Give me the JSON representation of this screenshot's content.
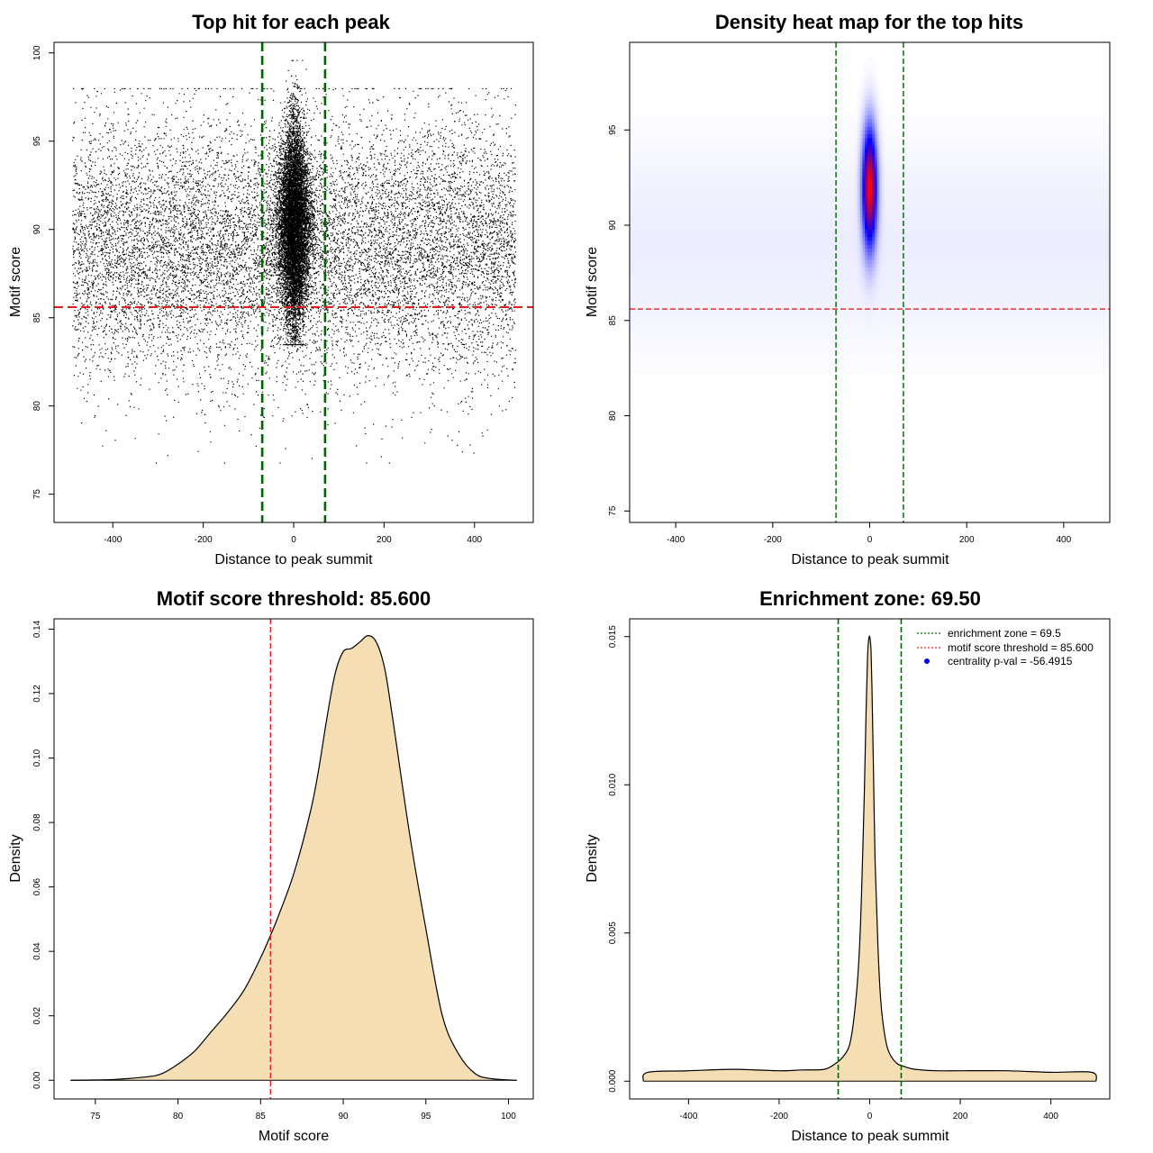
{
  "chart_data": [
    {
      "id": "scatter",
      "type": "scatter",
      "title": "Top hit for each peak",
      "xlabel": "Distance to peak summit",
      "ylabel": "Motif score",
      "xlim": [
        -530,
        530
      ],
      "ylim": [
        73.4,
        100.6
      ],
      "xticks": [
        -400,
        -200,
        0,
        200,
        400
      ],
      "yticks": [
        75,
        80,
        85,
        90,
        95,
        100
      ],
      "point_color": "#000000",
      "vlines": {
        "values": [
          -69.5,
          69.5
        ],
        "color": "#006400"
      },
      "hline": {
        "value": 85.6,
        "color": "#e02020"
      },
      "population": {
        "background": {
          "x_range": [
            -490,
            490
          ],
          "y_mean": 89,
          "y_sd": 3.6,
          "y_range": [
            76.8,
            98
          ],
          "count": 12000
        },
        "central_cluster": {
          "x_mean": 0,
          "x_sd": 18,
          "y_mean": 90.3,
          "y_sd": 2.8,
          "y_range": [
            83.5,
            99.6
          ],
          "count": 9000
        }
      }
    },
    {
      "id": "heatmap",
      "type": "heatmap",
      "title": "Density heat map for the top hits",
      "xlabel": "Distance to peak summit",
      "ylabel": "Motif score",
      "xlim": [
        -495,
        495
      ],
      "ylim": [
        74.4,
        99.6
      ],
      "xticks": [
        -400,
        -200,
        0,
        200,
        400
      ],
      "yticks": [
        75,
        80,
        85,
        90,
        95
      ],
      "colormap": [
        "#ffffff",
        "#0000ff",
        "#ff0000"
      ],
      "peak": {
        "x": 0,
        "y": 92,
        "x_sd": 10,
        "y_sd": 2.1
      },
      "vlines": {
        "values": [
          -69.5,
          69.5
        ],
        "color": "#006400"
      },
      "hline": {
        "value": 85.6,
        "color": "#e02020"
      }
    },
    {
      "id": "score-density",
      "type": "area",
      "title": "Motif score threshold: 85.600",
      "xlabel": "Motif score",
      "ylabel": "Density",
      "xlim": [
        72.5,
        101.5
      ],
      "ylim": [
        -0.0058,
        0.1432
      ],
      "xticks": [
        75,
        80,
        85,
        90,
        95,
        100
      ],
      "yticks": [
        0.0,
        0.02,
        0.04,
        0.06,
        0.08,
        0.1,
        0.12,
        0.14
      ],
      "ytick_labels": [
        "0.00",
        "0.02",
        "0.04",
        "0.06",
        "0.08",
        "0.10",
        "0.12",
        "0.14"
      ],
      "fill_color": "#f5deb3",
      "vline": {
        "value": 85.6,
        "color": "#e02020"
      },
      "x": [
        73.5,
        76,
        78,
        79,
        80,
        81,
        82,
        83,
        84,
        85,
        85.6,
        86,
        87,
        88,
        88.5,
        89,
        89.5,
        90,
        90.5,
        91,
        91.5,
        92,
        92.5,
        93,
        94,
        95,
        96,
        97,
        98,
        99,
        100.5
      ],
      "y": [
        0.0,
        0.0002,
        0.001,
        0.002,
        0.005,
        0.009,
        0.015,
        0.021,
        0.028,
        0.038,
        0.045,
        0.05,
        0.064,
        0.083,
        0.096,
        0.112,
        0.126,
        0.133,
        0.134,
        0.136,
        0.138,
        0.136,
        0.128,
        0.112,
        0.077,
        0.047,
        0.02,
        0.008,
        0.002,
        0.0005,
        0.0
      ]
    },
    {
      "id": "distance-density",
      "type": "area",
      "title": "Enrichment zone: 69.50",
      "xlabel": "Distance to peak summit",
      "ylabel": "Density",
      "xlim": [
        -530,
        530
      ],
      "ylim": [
        -0.0006,
        0.0156
      ],
      "xticks": [
        -400,
        -200,
        0,
        200,
        400
      ],
      "yticks": [
        0.0,
        0.005,
        0.01,
        0.015
      ],
      "ytick_labels": [
        "0.000",
        "0.005",
        "0.010",
        "0.015"
      ],
      "fill_color": "#f5deb3",
      "vlines": {
        "values": [
          -69.5,
          69.5
        ],
        "color": "#006400"
      },
      "x": [
        -500,
        -490,
        -400,
        -300,
        -200,
        -150,
        -100,
        -75,
        -60,
        -45,
        -35,
        -25,
        -18,
        -12,
        -8,
        -5,
        -3,
        -1,
        0,
        1,
        3,
        5,
        8,
        12,
        18,
        25,
        35,
        45,
        60,
        75,
        100,
        150,
        200,
        300,
        400,
        490,
        500
      ],
      "y": [
        0.0,
        0.0003,
        0.00035,
        0.0004,
        0.00035,
        0.00038,
        0.0004,
        0.0006,
        0.0008,
        0.0012,
        0.0021,
        0.0038,
        0.0063,
        0.0097,
        0.0125,
        0.0142,
        0.0148,
        0.015,
        0.015,
        0.0149,
        0.0145,
        0.0133,
        0.0108,
        0.0074,
        0.0046,
        0.0026,
        0.0014,
        0.0009,
        0.0006,
        0.0005,
        0.0004,
        0.00035,
        0.00035,
        0.00035,
        0.0003,
        0.0003,
        0.0
      ],
      "legend": {
        "position": "top-right",
        "entries": [
          {
            "label": "enrichment zone = 69.5",
            "style": "dotted-line",
            "color": "#006400"
          },
          {
            "label": "motif score threshold = 85.600",
            "style": "dotted-line",
            "color": "#e02020"
          },
          {
            "label": "centrality p-val = -56.4915",
            "style": "point",
            "color": "#0000ff"
          }
        ]
      }
    }
  ]
}
